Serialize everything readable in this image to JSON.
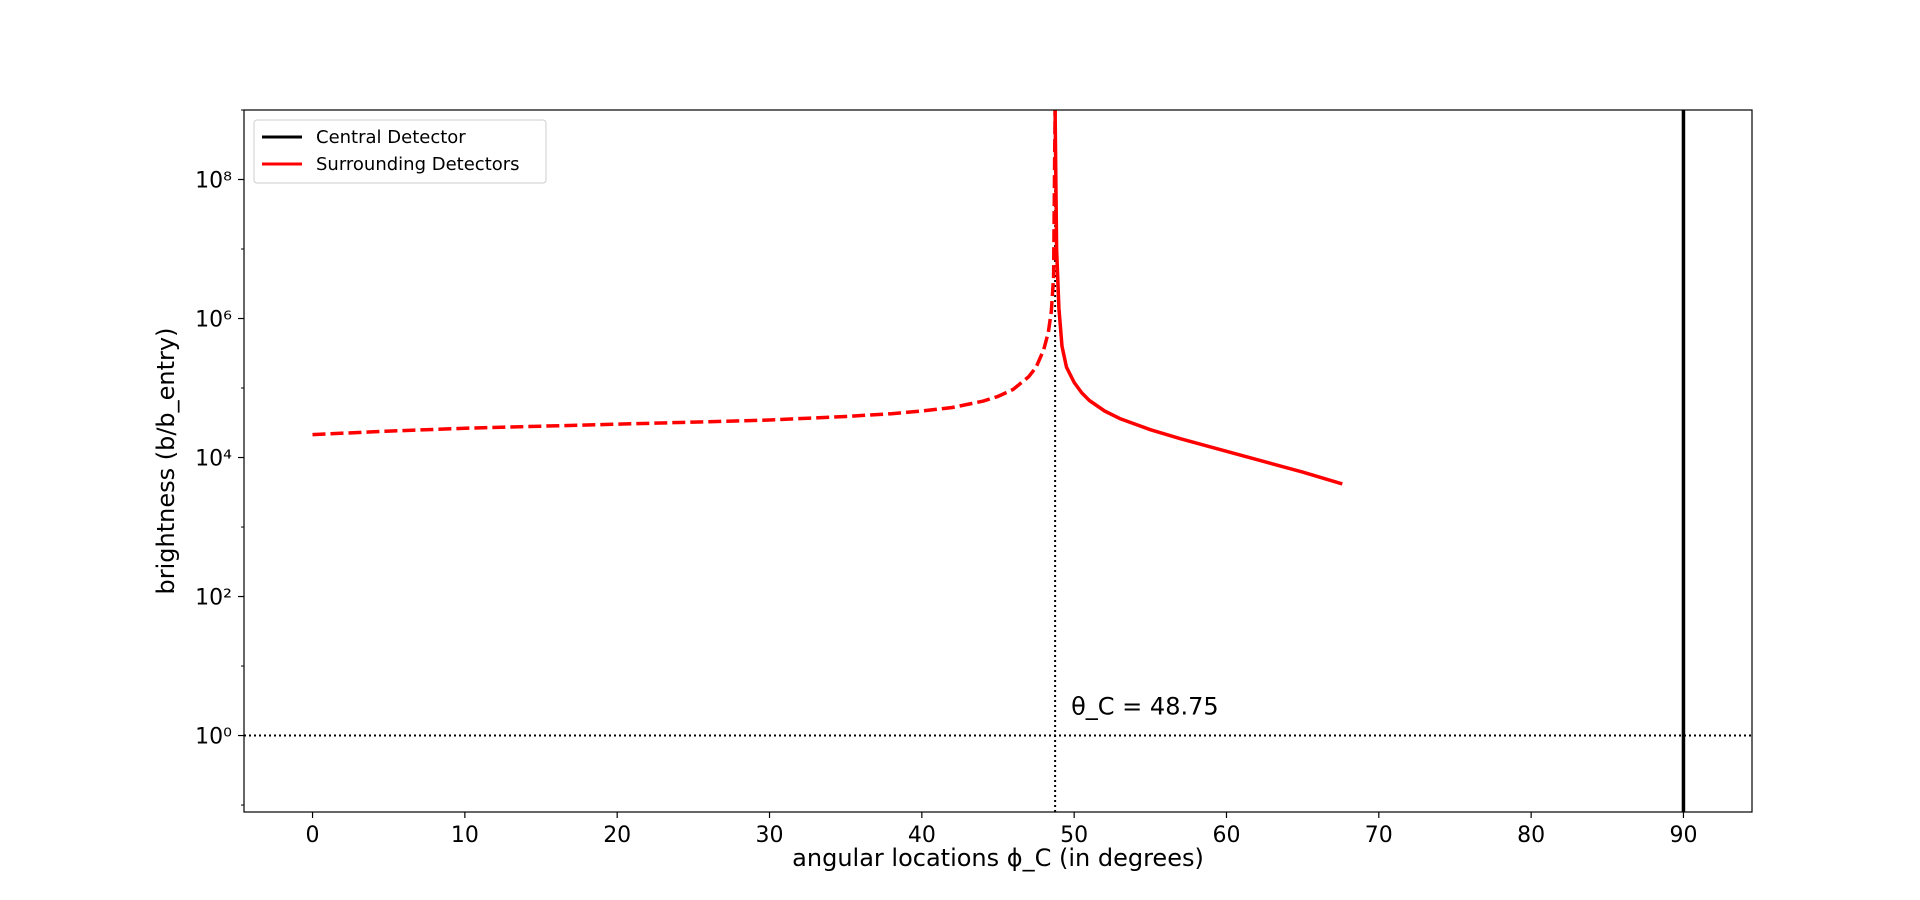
{
  "chart_data": {
    "type": "line",
    "xlabel": "angular locations ϕ_C (in degrees)",
    "ylabel": "brightness (b/b_entry)",
    "xlim": [
      -4.5,
      94.5
    ],
    "ylim_log10": [
      -1.1,
      9.0
    ],
    "y_scale": "log",
    "x_ticks": [
      0,
      10,
      20,
      30,
      40,
      50,
      60,
      70,
      80,
      90
    ],
    "y_ticks": [
      {
        "exp": 0,
        "label": "10⁰"
      },
      {
        "exp": 2,
        "label": "10²"
      },
      {
        "exp": 4,
        "label": "10⁴"
      },
      {
        "exp": 6,
        "label": "10⁶"
      },
      {
        "exp": 8,
        "label": "10⁸"
      }
    ],
    "grid": false,
    "legend_position": "top-left",
    "series": [
      {
        "name": "Central Detector",
        "color": "#000000",
        "style": "solid",
        "vertical_at_x": 90
      },
      {
        "name": "Surrounding Detectors",
        "color": "#ff0000",
        "style": "dashed",
        "segment": "before critical angle",
        "x": [
          0,
          5,
          10,
          15,
          20,
          25,
          30,
          35,
          38,
          40,
          42,
          44,
          45,
          46,
          47,
          47.5,
          48,
          48.3,
          48.5,
          48.65,
          48.75
        ],
        "y_log10": [
          4.33,
          4.38,
          4.42,
          4.45,
          4.48,
          4.51,
          4.54,
          4.59,
          4.63,
          4.67,
          4.72,
          4.81,
          4.88,
          4.98,
          5.16,
          5.3,
          5.55,
          5.8,
          6.1,
          6.6,
          9.0
        ]
      },
      {
        "name": "Surrounding Detectors",
        "color": "#ff0000",
        "style": "solid",
        "segment": "after critical angle",
        "x": [
          48.75,
          48.85,
          49,
          49.2,
          49.5,
          50,
          50.5,
          51,
          52,
          53,
          55,
          57,
          60,
          63,
          65,
          67.6
        ],
        "y_log10": [
          9.0,
          7.0,
          6.15,
          5.6,
          5.3,
          5.08,
          4.93,
          4.82,
          4.67,
          4.56,
          4.4,
          4.27,
          4.09,
          3.91,
          3.79,
          3.62
        ]
      }
    ],
    "reference_lines": [
      {
        "orientation": "horizontal",
        "y_log10": 0,
        "style": "dotted",
        "color": "#000000"
      },
      {
        "orientation": "vertical",
        "x": 48.75,
        "style": "dotted",
        "color": "#000000"
      }
    ],
    "annotations": [
      {
        "text": "θ_C = 48.75",
        "x": 49.8,
        "y_log10": 0.3
      }
    ]
  }
}
